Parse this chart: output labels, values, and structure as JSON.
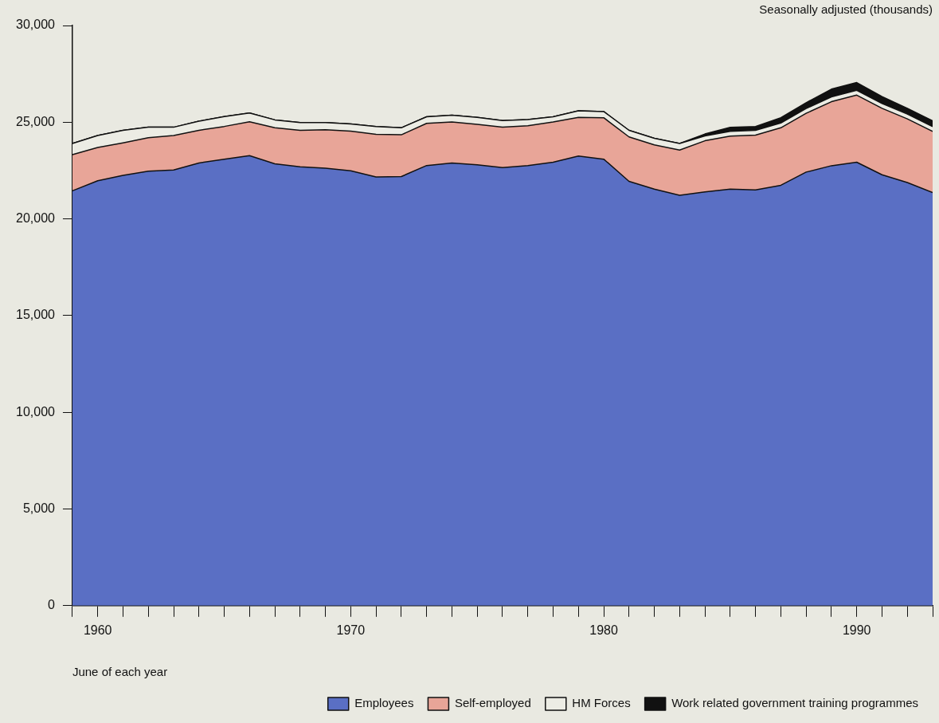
{
  "chart_data": {
    "type": "area",
    "stacked": true,
    "subtitle": "Seasonally adjusted (thousands)",
    "xlabel": "June of each year",
    "x": [
      1959,
      1960,
      1961,
      1962,
      1963,
      1964,
      1965,
      1966,
      1967,
      1968,
      1969,
      1970,
      1971,
      1972,
      1973,
      1974,
      1975,
      1976,
      1977,
      1978,
      1979,
      1980,
      1981,
      1982,
      1983,
      1984,
      1985,
      1986,
      1987,
      1988,
      1989,
      1990,
      1991,
      1992,
      1993
    ],
    "series": [
      {
        "name": "Employees",
        "color": "#5a6fc4",
        "values": [
          21450,
          21970,
          22250,
          22470,
          22530,
          22890,
          23090,
          23270,
          22850,
          22690,
          22620,
          22490,
          22170,
          22190,
          22760,
          22890,
          22800,
          22650,
          22760,
          22930,
          23250,
          23090,
          21940,
          21540,
          21220,
          21400,
          21540,
          21500,
          21740,
          22420,
          22750,
          22930,
          22280,
          21880,
          21360
        ]
      },
      {
        "name": "Self-employed",
        "color": "#e8a598",
        "values": [
          1870,
          1720,
          1680,
          1730,
          1780,
          1690,
          1690,
          1750,
          1860,
          1890,
          1990,
          2050,
          2200,
          2160,
          2180,
          2120,
          2090,
          2090,
          2060,
          2080,
          2000,
          2140,
          2300,
          2290,
          2340,
          2640,
          2740,
          2830,
          2970,
          3040,
          3310,
          3470,
          3440,
          3290,
          3160
        ]
      },
      {
        "name": "HM Forces",
        "color": "#ecece4",
        "values": [
          580,
          620,
          650,
          540,
          430,
          470,
          510,
          460,
          410,
          400,
          370,
          370,
          410,
          360,
          340,
          350,
          360,
          340,
          320,
          270,
          340,
          320,
          340,
          340,
          340,
          250,
          250,
          250,
          250,
          250,
          250,
          250,
          250,
          250,
          250
        ]
      },
      {
        "name": "Work related government training programmes",
        "color": "#111111",
        "values": [
          0,
          0,
          0,
          0,
          0,
          0,
          0,
          0,
          0,
          0,
          0,
          0,
          0,
          0,
          0,
          0,
          0,
          0,
          0,
          0,
          0,
          0,
          0,
          0,
          0,
          100,
          200,
          200,
          270,
          300,
          400,
          400,
          350,
          300,
          300
        ]
      }
    ],
    "xlim": [
      1959,
      1993
    ],
    "xticks": [
      {
        "value": 1959,
        "label": null
      },
      1960,
      {
        "value": 1961,
        "label": null
      },
      {
        "value": 1962,
        "label": null
      },
      {
        "value": 1963,
        "label": null
      },
      {
        "value": 1964,
        "label": null
      },
      {
        "value": 1965,
        "label": null
      },
      {
        "value": 1966,
        "label": null
      },
      {
        "value": 1967,
        "label": null
      },
      {
        "value": 1968,
        "label": null
      },
      {
        "value": 1969,
        "label": null
      },
      1970,
      {
        "value": 1971,
        "label": null
      },
      {
        "value": 1972,
        "label": null
      },
      {
        "value": 1973,
        "label": null
      },
      {
        "value": 1974,
        "label": null
      },
      {
        "value": 1975,
        "label": null
      },
      {
        "value": 1976,
        "label": null
      },
      {
        "value": 1977,
        "label": null
      },
      {
        "value": 1978,
        "label": null
      },
      {
        "value": 1979,
        "label": null
      },
      1980,
      {
        "value": 1981,
        "label": null
      },
      {
        "value": 1982,
        "label": null
      },
      {
        "value": 1983,
        "label": null
      },
      {
        "value": 1984,
        "label": null
      },
      {
        "value": 1985,
        "label": null
      },
      {
        "value": 1986,
        "label": null
      },
      {
        "value": 1987,
        "label": null
      },
      {
        "value": 1988,
        "label": null
      },
      {
        "value": 1989,
        "label": null
      },
      1990,
      {
        "value": 1991,
        "label": null
      },
      {
        "value": 1992,
        "label": null
      },
      {
        "value": 1993,
        "label": null
      }
    ],
    "ylim": [
      0,
      30000
    ],
    "yticks": [
      {
        "value": 0,
        "label": "0"
      },
      {
        "value": 5000,
        "label": "5,000"
      },
      {
        "value": 10000,
        "label": "10,000"
      },
      {
        "value": 15000,
        "label": "15,000"
      },
      {
        "value": 20000,
        "label": "20,000"
      },
      {
        "value": 25000,
        "label": "25,000"
      },
      {
        "value": 30000,
        "label": "30,000"
      }
    ],
    "legend": "bottom"
  }
}
